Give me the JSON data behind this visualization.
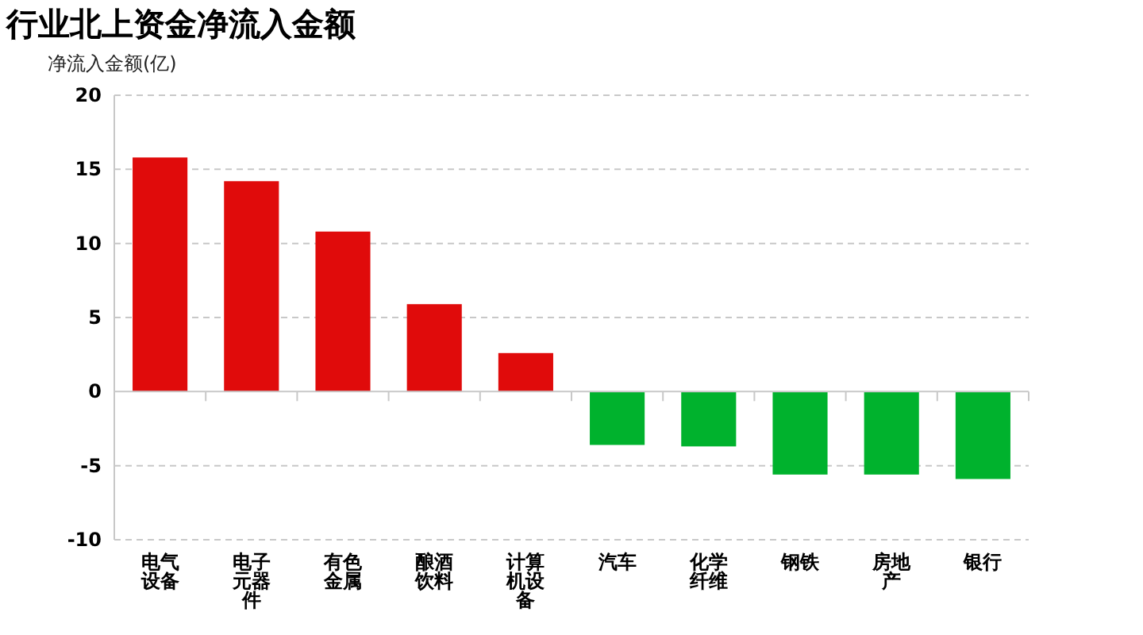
{
  "chart_data": {
    "type": "bar",
    "title": "行业北上资金净流入金额",
    "ylabel": "净流入金额(亿)",
    "categories": [
      "电气设备",
      "电子元器件",
      "有色金属",
      "酿酒饮料",
      "计算机设备",
      "汽车",
      "化学纤维",
      "钢铁",
      "房地产",
      "银行"
    ],
    "values": [
      15.8,
      14.2,
      10.8,
      5.9,
      2.6,
      -3.6,
      -3.7,
      -5.6,
      -5.6,
      -5.9
    ],
    "colors": [
      "#e00b0b",
      "#e00b0b",
      "#e00b0b",
      "#e00b0b",
      "#e00b0b",
      "#00b22d",
      "#00b22d",
      "#00b22d",
      "#00b22d",
      "#00b22d"
    ],
    "ylim": [
      -10,
      20
    ],
    "yticks": [
      -10,
      -5,
      0,
      5,
      10,
      15,
      20
    ],
    "grid": "y"
  }
}
